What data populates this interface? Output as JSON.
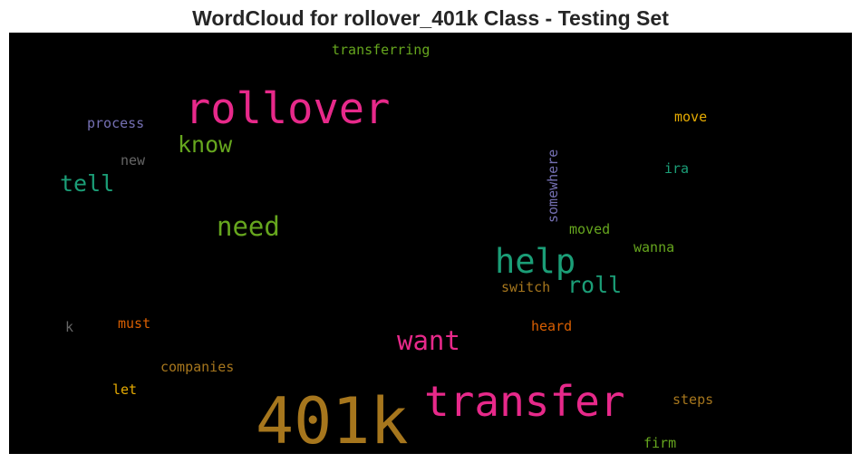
{
  "chart_data": {
    "type": "wordcloud",
    "title": "WordCloud for rollover_401k Class - Testing Set",
    "background": "#000000",
    "words": [
      {
        "text": "401k",
        "color": "#a6761d",
        "vertical": false
      },
      {
        "text": "transfer",
        "color": "#e7298a",
        "vertical": false
      },
      {
        "text": "rollover",
        "color": "#e7298a",
        "vertical": false
      },
      {
        "text": "help",
        "color": "#1b9e77",
        "vertical": false
      },
      {
        "text": "want",
        "color": "#e7298a",
        "vertical": false
      },
      {
        "text": "need",
        "color": "#66a61e",
        "vertical": false
      },
      {
        "text": "know",
        "color": "#66a61e",
        "vertical": false
      },
      {
        "text": "tell",
        "color": "#1b9e77",
        "vertical": false
      },
      {
        "text": "roll",
        "color": "#1b9e77",
        "vertical": false
      },
      {
        "text": "somewhere",
        "color": "#7570b3",
        "vertical": true
      },
      {
        "text": "transferring",
        "color": "#66a61e",
        "vertical": false
      },
      {
        "text": "process",
        "color": "#7570b3",
        "vertical": false
      },
      {
        "text": "move",
        "color": "#e6ab02",
        "vertical": false
      },
      {
        "text": "ira",
        "color": "#1b9e77",
        "vertical": false
      },
      {
        "text": "new",
        "color": "#666666",
        "vertical": false
      },
      {
        "text": "moved",
        "color": "#66a61e",
        "vertical": false
      },
      {
        "text": "wanna",
        "color": "#66a61e",
        "vertical": false
      },
      {
        "text": "switch",
        "color": "#a6761d",
        "vertical": false
      },
      {
        "text": "must",
        "color": "#d95f02",
        "vertical": false
      },
      {
        "text": "k",
        "color": "#666666",
        "vertical": false
      },
      {
        "text": "heard",
        "color": "#d95f02",
        "vertical": false
      },
      {
        "text": "companies",
        "color": "#a6761d",
        "vertical": false
      },
      {
        "text": "let",
        "color": "#e6ab02",
        "vertical": false
      },
      {
        "text": "steps",
        "color": "#a6761d",
        "vertical": false
      },
      {
        "text": "firm",
        "color": "#66a61e",
        "vertical": false
      }
    ]
  }
}
